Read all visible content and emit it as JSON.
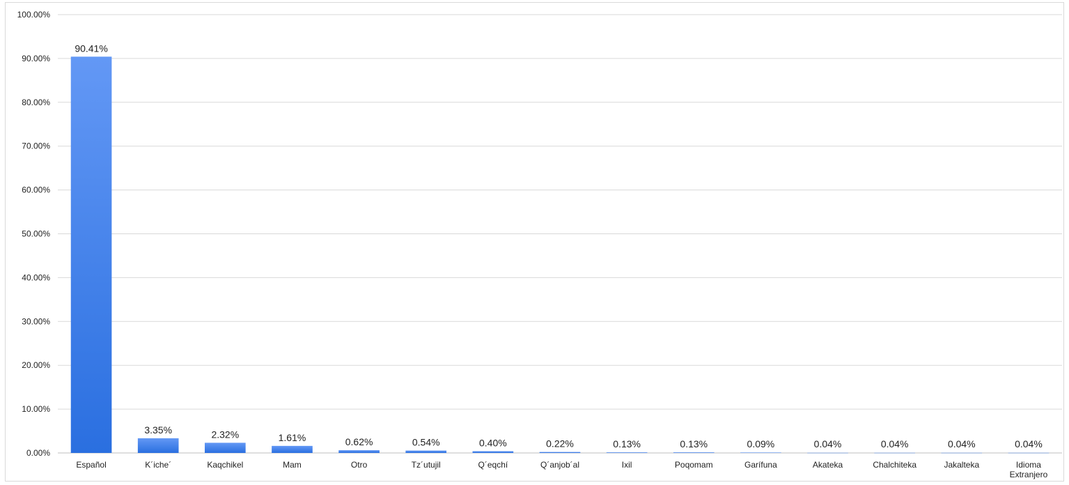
{
  "chart_data": {
    "type": "bar",
    "categories": [
      "Español",
      "K´iche´",
      "Kaqchikel",
      "Mam",
      "Otro",
      "Tz´utujil",
      "Q´eqchí",
      "Q´anjob´al",
      "Ixil",
      "Poqomam",
      "Garífuna",
      "Akateka",
      "Chalchiteka",
      "Jakalteka",
      "Idioma Extranjero"
    ],
    "values": [
      90.41,
      3.35,
      2.32,
      1.61,
      0.62,
      0.54,
      0.4,
      0.22,
      0.13,
      0.13,
      0.09,
      0.04,
      0.04,
      0.04,
      0.04
    ],
    "data_labels": [
      "90.41%",
      "3.35%",
      "2.32%",
      "1.61%",
      "0.62%",
      "0.54%",
      "0.40%",
      "0.22%",
      "0.13%",
      "0.13%",
      "0.09%",
      "0.04%",
      "0.04%",
      "0.04%",
      "0.04%"
    ],
    "y_ticks": [
      "0.00%",
      "10.00%",
      "20.00%",
      "30.00%",
      "40.00%",
      "50.00%",
      "60.00%",
      "70.00%",
      "80.00%",
      "90.00%",
      "100.00%"
    ],
    "ylim": [
      0,
      100
    ],
    "title": "",
    "xlabel": "",
    "ylabel": "",
    "grid": true,
    "legend": "none",
    "colors": {
      "bar_top": "#6398f5",
      "bar_bottom": "#2a6fe0",
      "grid": "#d9d9d9",
      "axis": "#bfbfbf",
      "text": "#222222"
    }
  }
}
